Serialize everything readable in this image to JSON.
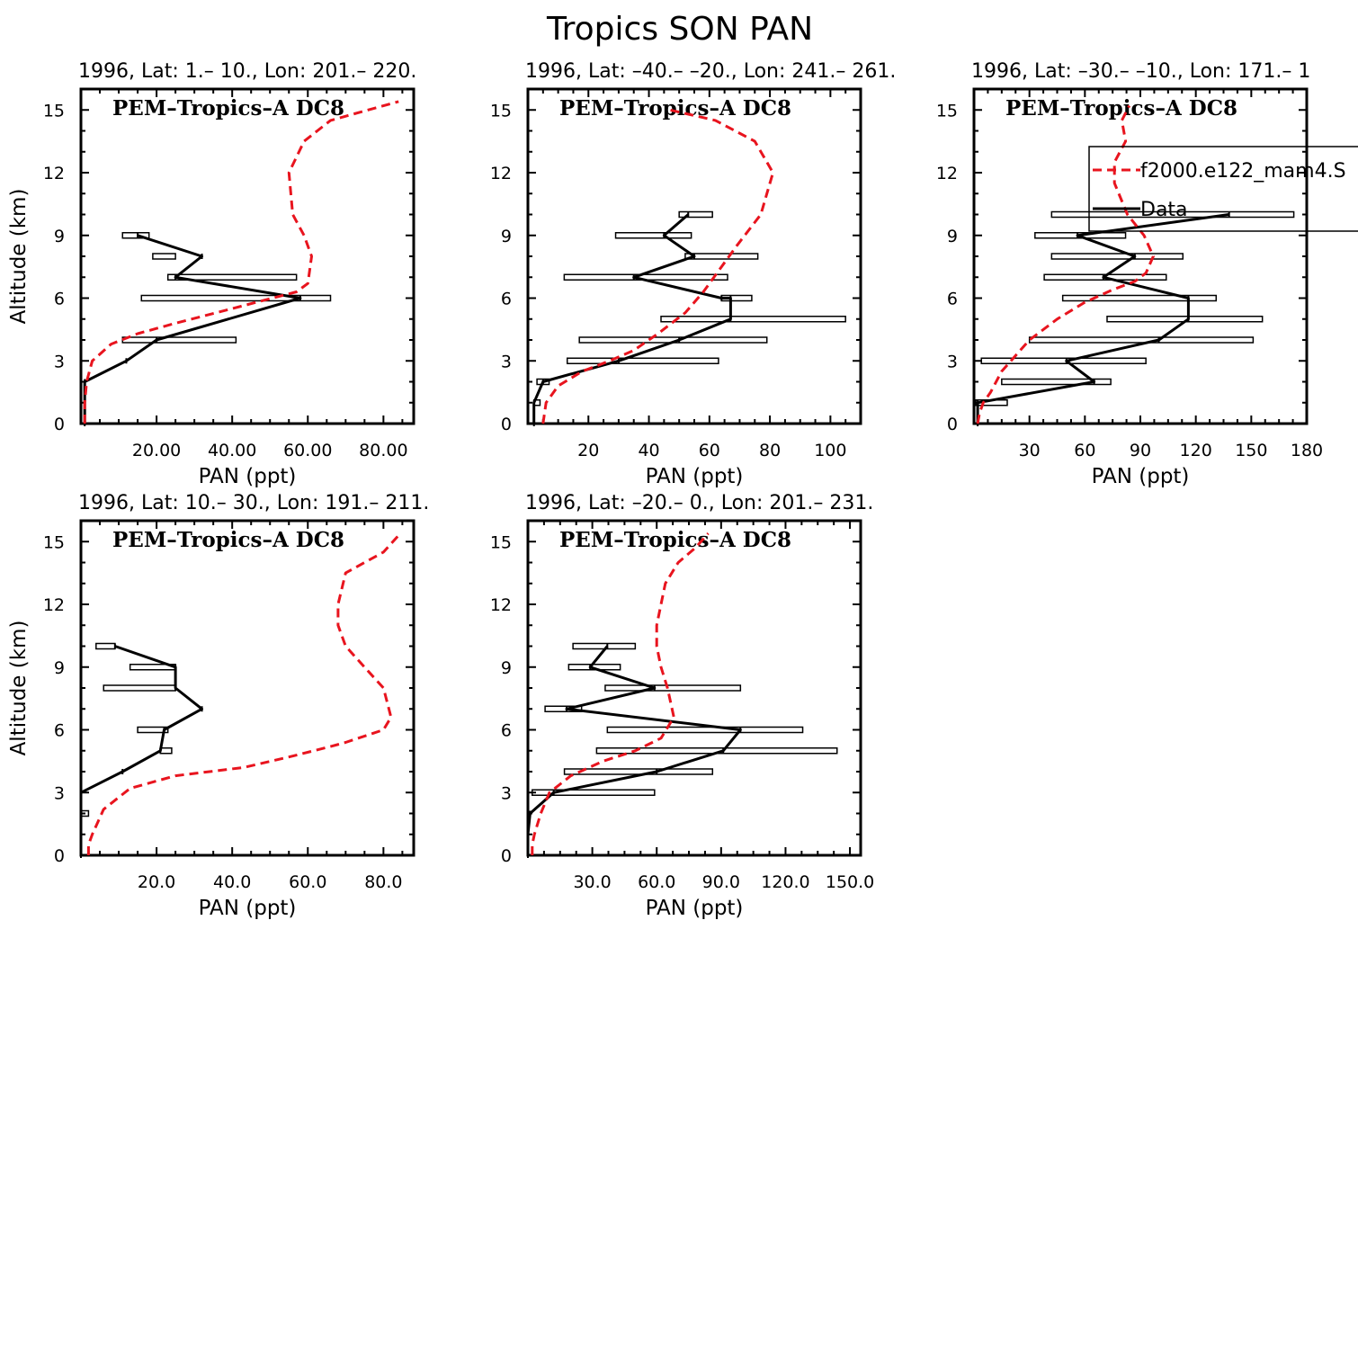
{
  "figure": {
    "title": "Tropics SON PAN",
    "model_color": "#e8141e",
    "data_color": "#000000"
  },
  "legend": {
    "model_label": "f2000.e122_mam4.S",
    "data_label": "Data"
  },
  "chart_data": [
    {
      "type": "line",
      "title": "1996, Lat: 1.– 10., Lon: 201.– 220.",
      "campaign": "PEM–Tropics–A DC8",
      "xlabel": "PAN (ppt)",
      "ylabel": "Altitude (km)",
      "xlim": [
        0,
        88
      ],
      "ylim": [
        0,
        16
      ],
      "xticks": [
        20,
        40,
        60,
        80
      ],
      "xtick_labels": [
        "20.00",
        "40.00",
        "60.00",
        "80.00"
      ],
      "yticks": [
        0,
        3,
        6,
        9,
        12,
        15
      ],
      "yticks_labels": [
        "0",
        "3",
        "6",
        "9",
        "12",
        "15"
      ],
      "model": {
        "x": [
          1,
          1,
          1,
          1.5,
          3,
          8,
          15,
          25,
          40,
          57,
          60,
          61,
          59,
          56,
          55,
          59,
          66,
          84
        ],
        "y": [
          0,
          0.5,
          1,
          2,
          3,
          3.8,
          4.3,
          4.8,
          5.5,
          6.3,
          6.7,
          8,
          9,
          10,
          12,
          13.5,
          14.5,
          15.4
        ]
      },
      "obs": {
        "x": [
          1,
          1,
          1,
          12,
          20,
          58,
          25,
          32,
          15
        ],
        "y": [
          0,
          1,
          2,
          3,
          4,
          6,
          7,
          8,
          9
        ],
        "xmin": [
          null,
          null,
          null,
          null,
          11,
          16,
          23,
          19,
          11
        ],
        "xmax": [
          null,
          null,
          null,
          null,
          41,
          66,
          57,
          25,
          18
        ]
      }
    },
    {
      "type": "line",
      "title": "1996, Lat: –40.– –20., Lon: 241.– 261.",
      "campaign": "PEM–Tropics–A DC8",
      "xlabel": "PAN (ppt)",
      "ylabel": "",
      "xlim": [
        0,
        110
      ],
      "ylim": [
        0,
        16
      ],
      "xticks": [
        20,
        40,
        60,
        80,
        100
      ],
      "xtick_labels": [
        "20",
        "40",
        "60",
        "80",
        "100"
      ],
      "yticks": [
        0,
        3,
        6,
        9,
        12,
        15
      ],
      "yticks_labels": [
        "0",
        "3",
        "6",
        "9",
        "12",
        "15"
      ],
      "model": {
        "x": [
          5,
          6,
          10,
          18,
          27,
          35,
          43,
          52,
          58,
          64,
          69,
          77,
          79,
          81,
          75,
          62,
          47
        ],
        "y": [
          0,
          1,
          1.8,
          2.5,
          3,
          3.5,
          4.3,
          5.3,
          6.3,
          7.5,
          8.5,
          10,
          11,
          12,
          13.5,
          14.5,
          15
        ]
      },
      "obs": {
        "x": [
          2,
          2,
          5,
          30,
          50,
          67,
          67,
          64,
          35,
          55,
          45,
          53
        ],
        "y": [
          0,
          1,
          2,
          3,
          4,
          5,
          6,
          6,
          7,
          8,
          9,
          10
        ],
        "xmin": [
          null,
          2,
          3,
          13,
          17,
          44,
          64,
          null,
          12,
          52,
          29,
          50
        ],
        "xmax": [
          null,
          4,
          7,
          63,
          79,
          105,
          74,
          null,
          66,
          76,
          54,
          61
        ]
      }
    },
    {
      "type": "line",
      "title": "1996, Lat: –30.– –10., Lon: 171.– 1",
      "campaign": "PEM–Tropics–A DC8",
      "xlabel": "PAN (ppt)",
      "ylabel": "",
      "xlim": [
        0,
        180
      ],
      "ylim": [
        0,
        16
      ],
      "xticks": [
        30,
        60,
        90,
        120,
        150,
        180
      ],
      "xtick_labels": [
        "30",
        "60",
        "90",
        "120",
        "150",
        "180"
      ],
      "yticks": [
        0,
        3,
        6,
        9,
        12,
        15
      ],
      "yticks_labels": [
        "0",
        "3",
        "6",
        "9",
        "12",
        "15"
      ],
      "model": {
        "x": [
          2,
          3,
          5,
          9,
          15,
          30,
          45,
          60,
          75,
          87,
          93,
          97,
          92,
          83,
          76,
          76,
          82,
          80,
          84
        ],
        "y": [
          0,
          0.5,
          1,
          1.5,
          2.5,
          4,
          5,
          5.8,
          6.4,
          6.8,
          7.2,
          8,
          9,
          10,
          11.5,
          12.5,
          13.5,
          14.5,
          15.2
        ]
      },
      "obs": {
        "x": [
          2,
          2,
          65,
          50,
          100,
          116,
          116,
          70,
          87,
          56,
          138
        ],
        "y": [
          0,
          1,
          2,
          3,
          4,
          5,
          6,
          7,
          8,
          9,
          10
        ],
        "xmin": [
          null,
          1,
          15,
          4,
          30,
          72,
          48,
          38,
          42,
          33,
          42
        ],
        "xmax": [
          null,
          18,
          74,
          93,
          151,
          156,
          131,
          104,
          113,
          82,
          173
        ]
      }
    },
    {
      "type": "line",
      "title": "1996, Lat: 10.– 30., Lon: 191.– 211.",
      "campaign": "PEM–Tropics–A DC8",
      "xlabel": "PAN (ppt)",
      "ylabel": "Altitude (km)",
      "xlim": [
        0,
        88
      ],
      "ylim": [
        0,
        16
      ],
      "xticks": [
        20,
        40,
        60,
        80
      ],
      "xtick_labels": [
        "20.0",
        "40.0",
        "60.0",
        "80.0"
      ],
      "yticks": [
        0,
        3,
        6,
        9,
        12,
        15
      ],
      "yticks_labels": [
        "0",
        "3",
        "6",
        "9",
        "12",
        "15"
      ],
      "model": {
        "x": [
          2,
          2,
          3,
          6,
          13,
          25,
          43,
          55,
          66,
          70,
          80,
          82,
          80,
          75,
          70,
          68,
          68,
          70,
          80,
          84
        ],
        "y": [
          0,
          0.5,
          1,
          2.2,
          3.2,
          3.8,
          4.2,
          4.7,
          5.2,
          5.4,
          6,
          6.6,
          8,
          9,
          10,
          11,
          12,
          13.5,
          14.5,
          15.3
        ]
      },
      "obs": {
        "x": [
          0,
          0,
          0,
          0,
          11,
          21,
          22,
          32,
          25,
          25,
          9
        ],
        "y": [
          0,
          1,
          2,
          3,
          4,
          5,
          6,
          7,
          8,
          9,
          10
        ],
        "xmin": [
          null,
          null,
          0,
          null,
          null,
          21,
          15,
          null,
          6,
          13,
          4
        ],
        "xmax": [
          null,
          null,
          2,
          null,
          null,
          24,
          23,
          null,
          25,
          25,
          9
        ]
      }
    },
    {
      "type": "line",
      "title": "1996, Lat: –20.– 0., Lon: 201.– 231.",
      "campaign": "PEM–Tropics–A DC8",
      "xlabel": "PAN (ppt)",
      "ylabel": "",
      "xlim": [
        0,
        155
      ],
      "ylim": [
        0,
        16
      ],
      "xticks": [
        30,
        60,
        90,
        120,
        150
      ],
      "xtick_labels": [
        "30.0",
        "60.0",
        "90.0",
        "120.0",
        "150.0"
      ],
      "yticks": [
        0,
        3,
        6,
        9,
        12,
        15
      ],
      "yticks_labels": [
        "0",
        "3",
        "6",
        "9",
        "12",
        "15"
      ],
      "model": {
        "x": [
          2,
          2,
          3,
          6,
          10,
          20,
          35,
          50,
          62,
          68,
          65,
          62,
          60,
          60,
          62,
          64,
          70,
          78,
          84
        ],
        "y": [
          0,
          0.5,
          1,
          2,
          3,
          3.8,
          4.5,
          5,
          5.6,
          6.6,
          8,
          9,
          10,
          11,
          12,
          13,
          14,
          14.7,
          15.4
        ]
      },
      "obs": {
        "x": [
          0,
          0,
          1,
          12,
          60,
          91,
          99,
          18,
          59,
          29,
          37
        ],
        "y": [
          0,
          1,
          2,
          3,
          4,
          5,
          6,
          7,
          8,
          9,
          10
        ],
        "xmin": [
          null,
          null,
          null,
          2,
          17,
          32,
          37,
          8,
          36,
          19,
          21
        ],
        "xmax": [
          null,
          null,
          null,
          59,
          86,
          144,
          128,
          25,
          99,
          43,
          50
        ]
      }
    }
  ]
}
